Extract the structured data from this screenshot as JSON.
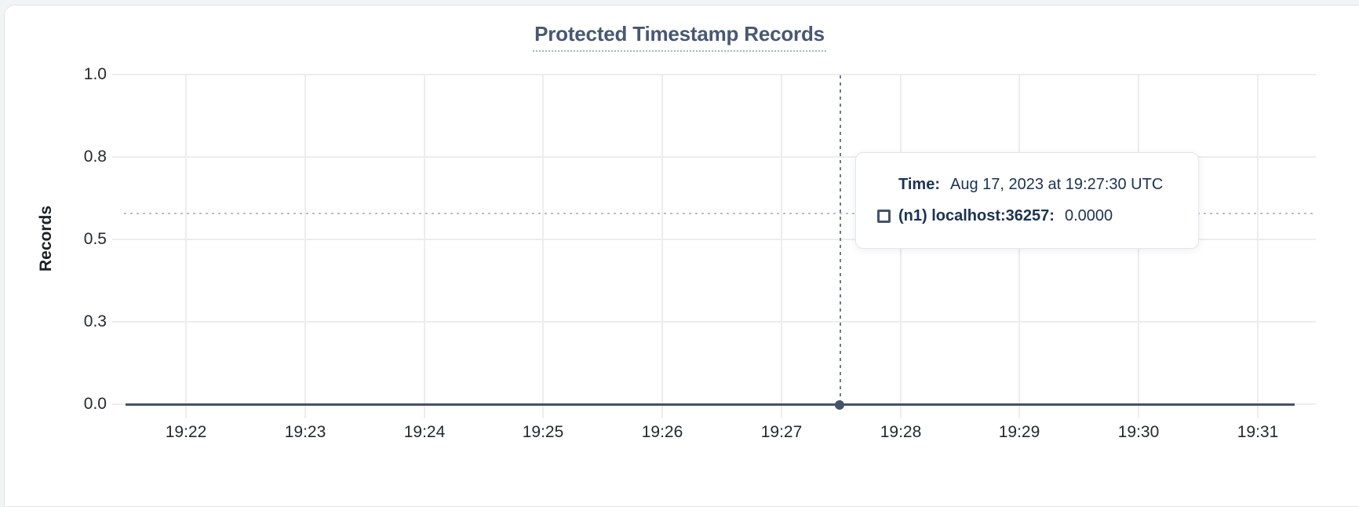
{
  "page": {
    "background": "#f2f3f5",
    "card_background": "#ffffff"
  },
  "chart_data": {
    "type": "line",
    "title": "Protected Timestamp Records",
    "xlabel": "",
    "ylabel": "Records",
    "x_ticks": [
      "19:22",
      "19:23",
      "19:24",
      "19:25",
      "19:26",
      "19:27",
      "19:28",
      "19:29",
      "19:30",
      "19:31"
    ],
    "y_ticks": [
      "1.0",
      "0.8",
      "0.5",
      "0.3",
      "0.0"
    ],
    "ylim": [
      0.0,
      1.0
    ],
    "grid": true,
    "legend_position": "none",
    "series": [
      {
        "name": "(n1) localhost:36257",
        "color": "#44536a",
        "x": [
          "19:22",
          "19:23",
          "19:24",
          "19:25",
          "19:26",
          "19:27",
          "19:27:30",
          "19:28",
          "19:29",
          "19:30",
          "19:31"
        ],
        "values": [
          0,
          0,
          0,
          0,
          0,
          0,
          0,
          0,
          0,
          0,
          0
        ]
      }
    ],
    "hover_point": {
      "time": "19:27:30",
      "value": 0.0
    }
  },
  "tooltip": {
    "time_label": "Time:",
    "time_value": "Aug 17, 2023 at 19:27:30 UTC",
    "series_label": "(n1) localhost:36257:",
    "series_value": "0.0000",
    "swatch_color": "#44536a"
  },
  "colors": {
    "title": "#475872",
    "axis_text": "#24292f",
    "grid": "#ededed",
    "series_line": "#44536a",
    "crosshair": "#6b7a90",
    "cursor_dotted": "#b7c0cb",
    "tooltip_text": "#1c3252"
  }
}
